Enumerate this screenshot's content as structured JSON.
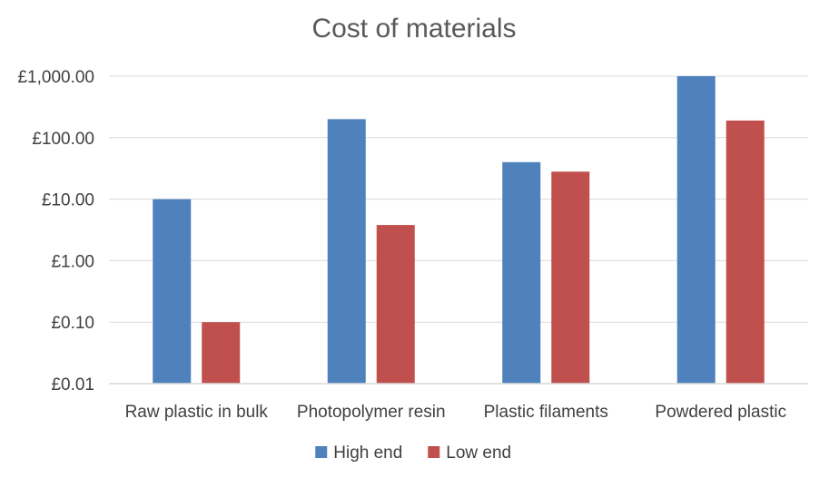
{
  "chart_data": {
    "type": "bar",
    "title": "Cost of materials",
    "xlabel": "",
    "ylabel": "",
    "yscale": "log",
    "ylim": [
      0.01,
      1000
    ],
    "yticks": [
      0.01,
      0.1,
      1,
      10,
      100,
      1000
    ],
    "ytick_labels": [
      "£0.01",
      "£0.10",
      "£1.00",
      "£10.00",
      "£100.00",
      "£1,000.00"
    ],
    "categories": [
      "Raw plastic in bulk",
      "Photopolymer resin",
      "Plastic filaments",
      "Powdered plastic"
    ],
    "series": [
      {
        "name": "High end",
        "color": "#4f81bd",
        "values": [
          10,
          200,
          40,
          1000
        ]
      },
      {
        "name": "Low end",
        "color": "#c0504d",
        "values": [
          0.1,
          3.8,
          28,
          190
        ]
      }
    ],
    "grid": true,
    "legend_position": "bottom"
  }
}
